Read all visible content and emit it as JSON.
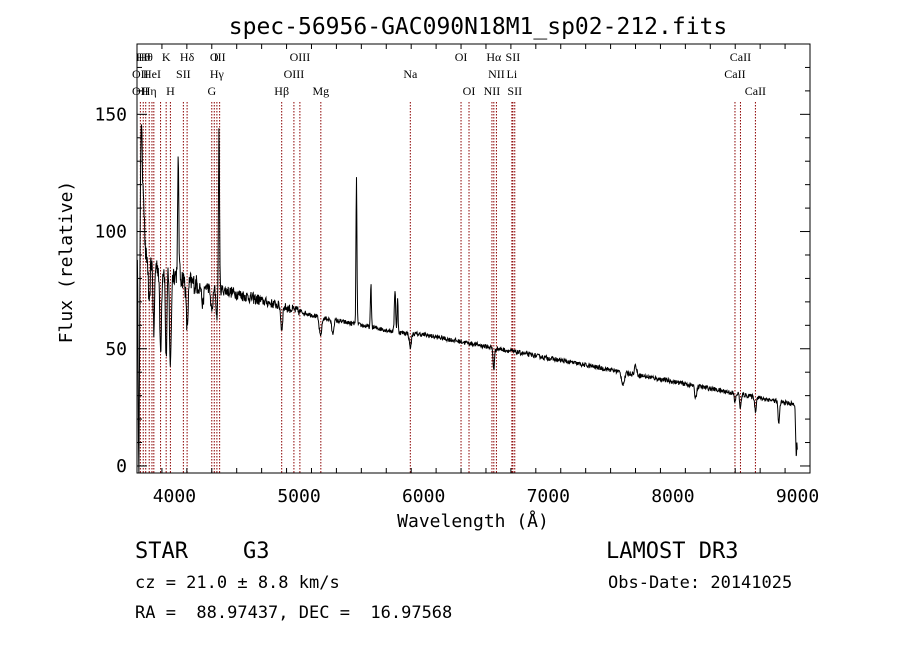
{
  "chart_data": {
    "type": "line",
    "title": "spec-56956-GAC090N18M1_sp02-212.fits",
    "xlabel": "Wavelength (Å)",
    "ylabel": "Flux (relative)",
    "xlim": [
      3700,
      9100
    ],
    "ylim": [
      -3,
      180
    ],
    "x_ticks": [
      4000,
      5000,
      6000,
      7000,
      8000,
      9000
    ],
    "x_tick_labels": [
      "4000",
      "5000",
      "6000",
      "7000",
      "8000",
      "9000"
    ],
    "y_ticks": [
      0,
      50,
      100,
      150
    ],
    "y_tick_labels": [
      "0",
      "50",
      "100",
      "150"
    ],
    "line_color": "#000000",
    "marker_color": "#8b0000",
    "continuum": [
      [
        3700,
        90
      ],
      [
        3800,
        88
      ],
      [
        3900,
        84
      ],
      [
        4000,
        82
      ],
      [
        4100,
        79
      ],
      [
        4200,
        77
      ],
      [
        4300,
        76
      ],
      [
        4400,
        75
      ],
      [
        4600,
        72
      ],
      [
        4800,
        69
      ],
      [
        5000,
        66
      ],
      [
        5200,
        63
      ],
      [
        5400,
        61
      ],
      [
        5600,
        59
      ],
      [
        5800,
        57
      ],
      [
        6000,
        56
      ],
      [
        6200,
        54
      ],
      [
        6400,
        52
      ],
      [
        6600,
        50
      ],
      [
        6800,
        48
      ],
      [
        7000,
        46
      ],
      [
        7200,
        44
      ],
      [
        7400,
        42
      ],
      [
        7600,
        40
      ],
      [
        7800,
        38
      ],
      [
        8000,
        36
      ],
      [
        8200,
        34
      ],
      [
        8400,
        32
      ],
      [
        8600,
        30
      ],
      [
        8800,
        28
      ],
      [
        9000,
        26
      ]
    ],
    "features": [
      {
        "x": 3715,
        "dy": -90,
        "w": 5
      },
      {
        "x": 3734,
        "dy": 55,
        "w": 6
      },
      {
        "x": 3750,
        "dy": 30,
        "w": 8
      },
      {
        "x": 3798,
        "dy": -22,
        "w": 6
      },
      {
        "x": 3835,
        "dy": -30,
        "w": 6
      },
      {
        "x": 3889,
        "dy": -35,
        "w": 7
      },
      {
        "x": 3934,
        "dy": -38,
        "w": 6
      },
      {
        "x": 3968,
        "dy": -40,
        "w": 7
      },
      {
        "x": 4031,
        "dy": 48,
        "w": 5
      },
      {
        "x": 4102,
        "dy": -20,
        "w": 8
      },
      {
        "x": 4227,
        "dy": -8,
        "w": 8
      },
      {
        "x": 4300,
        "dy": -10,
        "w": 9
      },
      {
        "x": 4358,
        "dy": 70,
        "w": 4
      },
      {
        "x": 4340,
        "dy": -12,
        "w": 6
      },
      {
        "x": 4861,
        "dy": -10,
        "w": 7
      },
      {
        "x": 5172,
        "dy": -8,
        "w": 10
      },
      {
        "x": 5270,
        "dy": -6,
        "w": 8
      },
      {
        "x": 5461,
        "dy": 62,
        "w": 4
      },
      {
        "x": 5577,
        "dy": 18,
        "w": 4
      },
      {
        "x": 5770,
        "dy": 18,
        "w": 5
      },
      {
        "x": 5791,
        "dy": 14,
        "w": 4
      },
      {
        "x": 5893,
        "dy": -6,
        "w": 8
      },
      {
        "x": 6563,
        "dy": -9,
        "w": 6
      },
      {
        "x": 7600,
        "dy": -5,
        "w": 12
      },
      {
        "x": 7700,
        "dy": 4,
        "w": 8
      },
      {
        "x": 8182,
        "dy": -5,
        "w": 8
      },
      {
        "x": 8498,
        "dy": -4,
        "w": 6
      },
      {
        "x": 8542,
        "dy": -6,
        "w": 6
      },
      {
        "x": 8662,
        "dy": -6,
        "w": 6
      },
      {
        "x": 8850,
        "dy": -10,
        "w": 6
      },
      {
        "x": 8990,
        "dy": -22,
        "w": 5
      }
    ],
    "line_markers": [
      {
        "x": 3727,
        "labels": [
          "",
          "OII",
          "OII"
        ]
      },
      {
        "x": 3750,
        "labels": [
          "Hθ",
          "",
          ""
        ]
      },
      {
        "x": 3770,
        "labels": [
          "Hθ",
          "",
          ""
        ]
      },
      {
        "x": 3798,
        "labels": [
          "",
          "",
          "Hη"
        ]
      },
      {
        "x": 3820,
        "labels": [
          "",
          "HeI",
          ""
        ]
      },
      {
        "x": 3835,
        "labels": [
          "",
          "",
          ""
        ]
      },
      {
        "x": 3889,
        "labels": [
          "",
          "",
          ""
        ]
      },
      {
        "x": 3934,
        "labels": [
          "K",
          "",
          ""
        ]
      },
      {
        "x": 3968,
        "labels": [
          "",
          "",
          "H"
        ]
      },
      {
        "x": 4072,
        "labels": [
          "",
          "SII",
          ""
        ]
      },
      {
        "x": 4102,
        "labels": [
          "Hδ",
          "",
          ""
        ]
      },
      {
        "x": 4300,
        "labels": [
          "",
          "",
          "G"
        ]
      },
      {
        "x": 4320,
        "labels": [
          "O",
          "",
          ""
        ]
      },
      {
        "x": 4341,
        "labels": [
          "",
          "Hγ",
          ""
        ]
      },
      {
        "x": 4363,
        "labels": [
          "III",
          "",
          ""
        ]
      },
      {
        "x": 4861,
        "labels": [
          "",
          "",
          "Hβ"
        ]
      },
      {
        "x": 4959,
        "labels": [
          "",
          "OIII",
          ""
        ]
      },
      {
        "x": 5007,
        "labels": [
          "OIII",
          "",
          ""
        ]
      },
      {
        "x": 5175,
        "labels": [
          "",
          "",
          "Mg"
        ]
      },
      {
        "x": 5893,
        "labels": [
          "",
          "Na",
          ""
        ]
      },
      {
        "x": 6300,
        "labels": [
          "OI",
          "",
          ""
        ]
      },
      {
        "x": 6364,
        "labels": [
          "",
          "",
          "OI"
        ]
      },
      {
        "x": 6548,
        "labels": [
          "",
          "",
          "NII"
        ]
      },
      {
        "x": 6563,
        "labels": [
          "Hα",
          "",
          ""
        ]
      },
      {
        "x": 6584,
        "labels": [
          "",
          "NII",
          ""
        ]
      },
      {
        "x": 6708,
        "labels": [
          "",
          "Li",
          ""
        ]
      },
      {
        "x": 6716,
        "labels": [
          "SII",
          "",
          ""
        ]
      },
      {
        "x": 6731,
        "labels": [
          "",
          "",
          "SII"
        ]
      },
      {
        "x": 8498,
        "labels": [
          "",
          "CaII",
          ""
        ]
      },
      {
        "x": 8542,
        "labels": [
          "CaII",
          "",
          ""
        ]
      },
      {
        "x": 8662,
        "labels": [
          "",
          "",
          "CaII"
        ]
      }
    ]
  },
  "info": {
    "object_class": "STAR",
    "subclass": "G3",
    "cz": "cz = 21.0 ± 8.8 km/s",
    "coords": "RA =  88.97437, DEC =  16.97568",
    "survey": "LAMOST DR3",
    "obs_date": "Obs-Date: 20141025"
  }
}
